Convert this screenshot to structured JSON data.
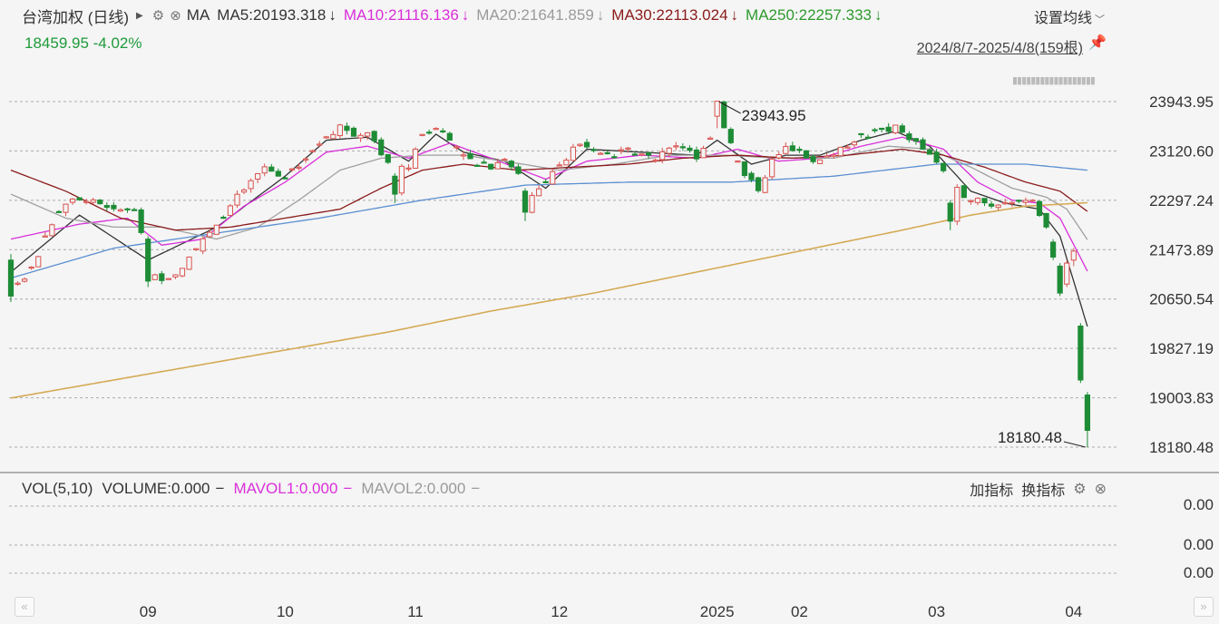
{
  "header": {
    "name": "台湾加权 (日线)",
    "indicator": "MA",
    "ma5": "MA5:20193.318",
    "ma10": "MA10:21116.136",
    "ma20": "MA20:21641.859",
    "ma30": "MA30:22113.024",
    "ma250": "MA250:22257.333",
    "down_arrow": "↓",
    "set_ma_label": "设置均线",
    "price_change": "18459.95 -4.02%",
    "date_range": "2024/8/7-2025/4/8(159根)"
  },
  "volume_pane": {
    "vol": "VOL(5,10)",
    "volume": "VOLUME:0.000",
    "mavol1": "MAVOL1:0.000",
    "mavol2": "MAVOL2:0.000",
    "dash": "−",
    "add_indicator": "加指标",
    "switch_indicator": "换指标",
    "axis_labels": [
      "0.00",
      "0.00",
      "0.00"
    ]
  },
  "nav": {
    "left": "«",
    "right": "»"
  },
  "colors": {
    "up": "#d9534f",
    "down": "#1e8c36",
    "ma5": "#333333",
    "ma10": "#d92fd9",
    "ma20": "#a0a0a0",
    "ma30": "#8b1a1a",
    "ma60": "#5b8fd1",
    "ma250": "#d4aa55"
  },
  "chart_data": {
    "type": "candlestick",
    "title": "台湾加权 (日线)",
    "period": "2024/8/7-2025/4/8",
    "bar_count": 159,
    "ylim": [
      18180.48,
      23943.95
    ],
    "y_ticks": [
      "23943.95",
      "23120.60",
      "22297.24",
      "21473.89",
      "20650.54",
      "19827.19",
      "19003.83",
      "18180.48"
    ],
    "x_ticks": [
      {
        "label": "09",
        "index": 20
      },
      {
        "label": "10",
        "index": 40
      },
      {
        "label": "11",
        "index": 59
      },
      {
        "label": "12",
        "index": 80
      },
      {
        "label": "2025",
        "index": 103
      },
      {
        "label": "02",
        "index": 115
      },
      {
        "label": "03",
        "index": 135
      },
      {
        "label": "04",
        "index": 155
      }
    ],
    "annotations": [
      {
        "label": "23943.95",
        "index": 103,
        "value": 23943.95
      },
      {
        "label": "18180.48",
        "index": 157,
        "value": 18180.48
      }
    ],
    "close_path": [
      [
        0,
        20800
      ],
      [
        3,
        21150
      ],
      [
        6,
        21900
      ],
      [
        9,
        22350
      ],
      [
        12,
        22250
      ],
      [
        15,
        22100
      ],
      [
        18,
        22200
      ],
      [
        20,
        21200
      ],
      [
        22,
        21000
      ],
      [
        24,
        21050
      ],
      [
        27,
        21550
      ],
      [
        30,
        21900
      ],
      [
        33,
        22350
      ],
      [
        35,
        22600
      ],
      [
        37,
        22850
      ],
      [
        40,
        22650
      ],
      [
        43,
        23000
      ],
      [
        46,
        23350
      ],
      [
        48,
        23550
      ],
      [
        50,
        23380
      ],
      [
        52,
        23450
      ],
      [
        54,
        23100
      ],
      [
        56,
        22800
      ],
      [
        58,
        22850
      ],
      [
        60,
        23350
      ],
      [
        62,
        23550
      ],
      [
        64,
        23350
      ],
      [
        66,
        23000
      ],
      [
        68,
        22900
      ],
      [
        70,
        22850
      ],
      [
        72,
        23000
      ],
      [
        74,
        22750
      ],
      [
        76,
        22350
      ],
      [
        78,
        22600
      ],
      [
        80,
        22900
      ],
      [
        82,
        23150
      ],
      [
        84,
        23200
      ],
      [
        86,
        23100
      ],
      [
        88,
        23050
      ],
      [
        90,
        23150
      ],
      [
        92,
        23100
      ],
      [
        94,
        22950
      ],
      [
        96,
        23200
      ],
      [
        98,
        23250
      ],
      [
        100,
        22950
      ],
      [
        102,
        23300
      ],
      [
        103,
        23800
      ],
      [
        105,
        23300
      ],
      [
        107,
        22700
      ],
      [
        109,
        22500
      ],
      [
        111,
        22950
      ],
      [
        113,
        23150
      ],
      [
        115,
        23200
      ],
      [
        117,
        22900
      ],
      [
        119,
        23000
      ],
      [
        121,
        23150
      ],
      [
        123,
        23300
      ],
      [
        125,
        23400
      ],
      [
        127,
        23450
      ],
      [
        129,
        23500
      ],
      [
        131,
        23350
      ],
      [
        133,
        23150
      ],
      [
        135,
        22900
      ],
      [
        137,
        22650
      ],
      [
        139,
        22400
      ],
      [
        141,
        22300
      ],
      [
        143,
        22200
      ],
      [
        145,
        22300
      ],
      [
        147,
        22300
      ],
      [
        149,
        22250
      ],
      [
        150,
        22000
      ],
      [
        151,
        21850
      ],
      [
        152,
        21500
      ],
      [
        153,
        20800
      ],
      [
        154,
        21100
      ],
      [
        155,
        21400
      ],
      [
        156,
        19900
      ],
      [
        157,
        18459.95
      ]
    ],
    "spikes": [
      {
        "index": 0,
        "o": 21300,
        "c": 20700,
        "h": 21400,
        "l": 20600
      },
      {
        "index": 20,
        "o": 21650,
        "c": 20950,
        "h": 21700,
        "l": 20850
      },
      {
        "index": 56,
        "o": 22700,
        "c": 22400,
        "h": 22750,
        "l": 22250
      },
      {
        "index": 75,
        "o": 22450,
        "c": 22100,
        "h": 22500,
        "l": 21950
      },
      {
        "index": 103,
        "o": 23700,
        "c": 23950,
        "h": 23943.95,
        "l": 23500
      },
      {
        "index": 137,
        "o": 22250,
        "c": 21950,
        "h": 22300,
        "l": 21800
      },
      {
        "index": 152,
        "o": 21600,
        "c": 21350,
        "h": 21650,
        "l": 21300
      },
      {
        "index": 153,
        "o": 21200,
        "c": 20750,
        "h": 21250,
        "l": 20700
      },
      {
        "index": 154,
        "o": 20900,
        "c": 21250,
        "h": 21300,
        "l": 20850
      },
      {
        "index": 155,
        "o": 21300,
        "c": 21450,
        "h": 21500,
        "l": 21200
      },
      {
        "index": 156,
        "o": 20200,
        "c": 19300,
        "h": 20250,
        "l": 19250
      },
      {
        "index": 157,
        "o": 19050,
        "c": 18459.95,
        "h": 19100,
        "l": 18180.48
      }
    ],
    "ma_lines": [
      {
        "name": "MA5",
        "color": "#333333",
        "points": [
          [
            0,
            21100
          ],
          [
            10,
            22050
          ],
          [
            20,
            21300
          ],
          [
            30,
            21850
          ],
          [
            40,
            22700
          ],
          [
            46,
            23300
          ],
          [
            52,
            23350
          ],
          [
            58,
            22950
          ],
          [
            62,
            23400
          ],
          [
            66,
            23100
          ],
          [
            72,
            22950
          ],
          [
            78,
            22500
          ],
          [
            84,
            23150
          ],
          [
            92,
            23100
          ],
          [
            100,
            23050
          ],
          [
            103,
            23300
          ],
          [
            108,
            22900
          ],
          [
            113,
            23050
          ],
          [
            118,
            23050
          ],
          [
            124,
            23300
          ],
          [
            129,
            23450
          ],
          [
            134,
            23200
          ],
          [
            140,
            22450
          ],
          [
            145,
            22250
          ],
          [
            150,
            22150
          ],
          [
            153,
            21700
          ],
          [
            157,
            20193.318
          ]
        ]
      },
      {
        "name": "MA10",
        "color": "#d92fd9",
        "points": [
          [
            0,
            21650
          ],
          [
            10,
            21900
          ],
          [
            17,
            22000
          ],
          [
            22,
            21550
          ],
          [
            28,
            21650
          ],
          [
            34,
            22200
          ],
          [
            40,
            22600
          ],
          [
            46,
            23100
          ],
          [
            52,
            23200
          ],
          [
            58,
            23000
          ],
          [
            64,
            23250
          ],
          [
            70,
            23000
          ],
          [
            78,
            22650
          ],
          [
            84,
            22950
          ],
          [
            92,
            23050
          ],
          [
            100,
            23000
          ],
          [
            106,
            23150
          ],
          [
            112,
            22950
          ],
          [
            118,
            23000
          ],
          [
            124,
            23200
          ],
          [
            130,
            23350
          ],
          [
            136,
            23150
          ],
          [
            141,
            22600
          ],
          [
            146,
            22300
          ],
          [
            150,
            22250
          ],
          [
            153,
            22000
          ],
          [
            157,
            21116.136
          ]
        ]
      },
      {
        "name": "MA20",
        "color": "#a0a0a0",
        "points": [
          [
            0,
            22400
          ],
          [
            8,
            22000
          ],
          [
            15,
            21850
          ],
          [
            22,
            21850
          ],
          [
            30,
            21650
          ],
          [
            36,
            21850
          ],
          [
            42,
            22300
          ],
          [
            48,
            22800
          ],
          [
            54,
            23000
          ],
          [
            60,
            23050
          ],
          [
            66,
            23050
          ],
          [
            72,
            22950
          ],
          [
            80,
            22800
          ],
          [
            88,
            22900
          ],
          [
            96,
            23050
          ],
          [
            104,
            23050
          ],
          [
            112,
            23000
          ],
          [
            120,
            23000
          ],
          [
            128,
            23200
          ],
          [
            134,
            23150
          ],
          [
            140,
            22850
          ],
          [
            146,
            22500
          ],
          [
            151,
            22350
          ],
          [
            154,
            22150
          ],
          [
            157,
            21641.859
          ]
        ]
      },
      {
        "name": "MA30",
        "color": "#8b1a1a",
        "points": [
          [
            0,
            22800
          ],
          [
            8,
            22450
          ],
          [
            16,
            22000
          ],
          [
            24,
            21800
          ],
          [
            32,
            21850
          ],
          [
            40,
            22000
          ],
          [
            48,
            22150
          ],
          [
            54,
            22500
          ],
          [
            60,
            22800
          ],
          [
            66,
            22900
          ],
          [
            74,
            22800
          ],
          [
            82,
            22850
          ],
          [
            90,
            22900
          ],
          [
            98,
            23000
          ],
          [
            106,
            23050
          ],
          [
            114,
            23000
          ],
          [
            122,
            23050
          ],
          [
            130,
            23150
          ],
          [
            136,
            23050
          ],
          [
            142,
            22850
          ],
          [
            148,
            22600
          ],
          [
            153,
            22450
          ],
          [
            157,
            22113.024
          ]
        ]
      },
      {
        "name": "MA60",
        "color": "#5b8fd1",
        "points": [
          [
            0,
            21000
          ],
          [
            15,
            21500
          ],
          [
            30,
            21750
          ],
          [
            45,
            22000
          ],
          [
            60,
            22300
          ],
          [
            75,
            22550
          ],
          [
            90,
            22600
          ],
          [
            105,
            22600
          ],
          [
            120,
            22700
          ],
          [
            135,
            22900
          ],
          [
            148,
            22900
          ],
          [
            157,
            22800
          ]
        ]
      },
      {
        "name": "MA250",
        "color": "#d4aa55",
        "points": [
          [
            0,
            19000
          ],
          [
            20,
            19400
          ],
          [
            40,
            19800
          ],
          [
            55,
            20100
          ],
          [
            70,
            20450
          ],
          [
            85,
            20750
          ],
          [
            100,
            21100
          ],
          [
            115,
            21450
          ],
          [
            130,
            21800
          ],
          [
            140,
            22050
          ],
          [
            148,
            22200
          ],
          [
            157,
            22257.333
          ]
        ]
      }
    ]
  }
}
